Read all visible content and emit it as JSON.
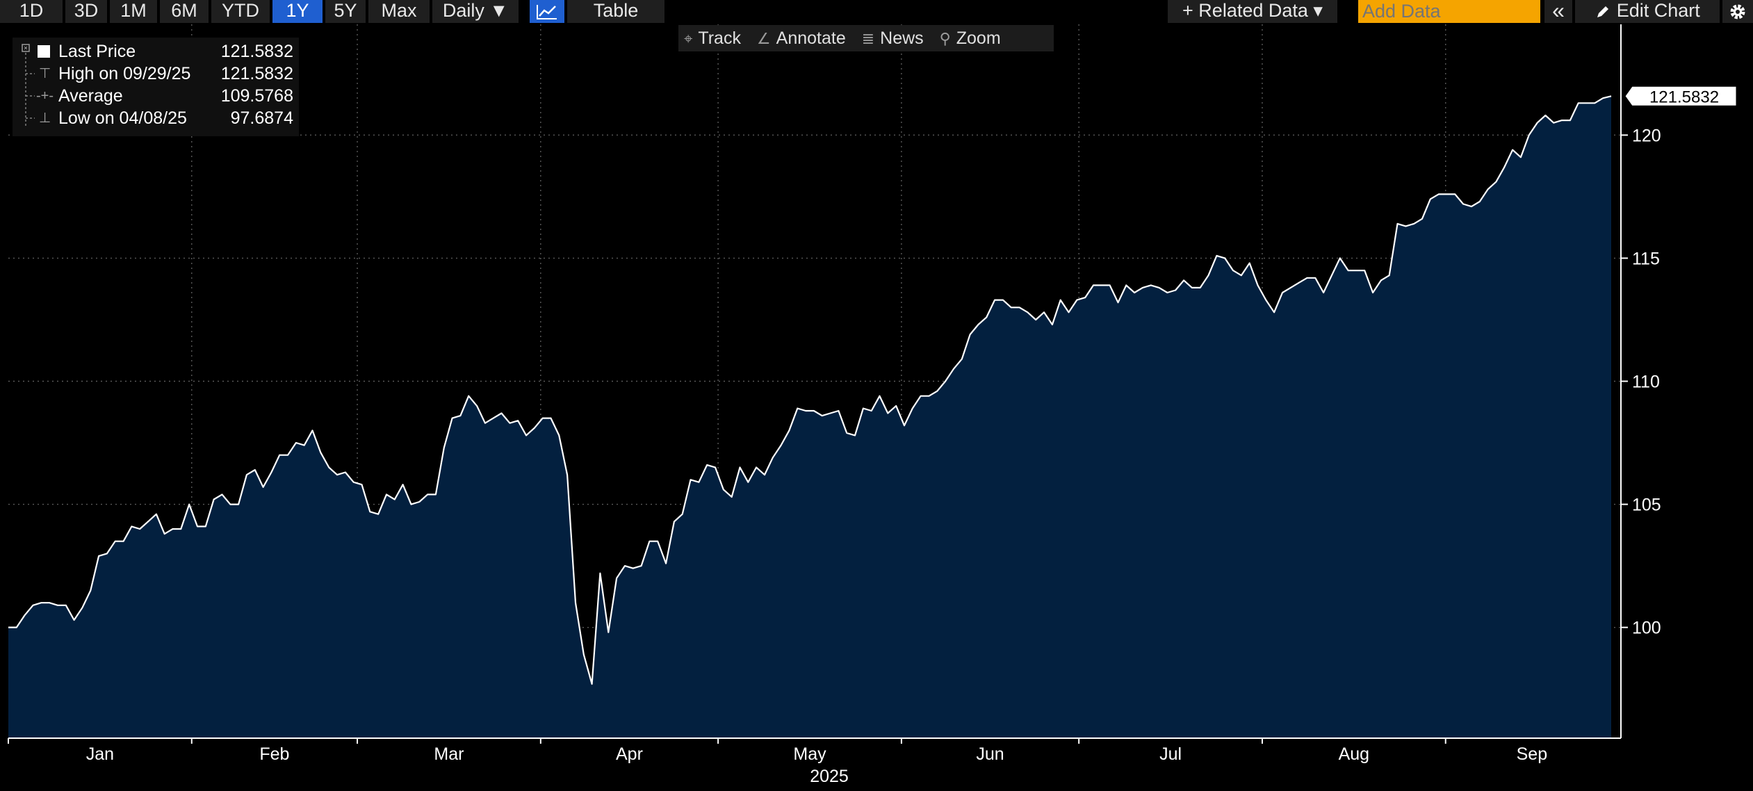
{
  "toolbar": {
    "ranges": [
      "1D",
      "3D",
      "1M",
      "6M",
      "YTD",
      "1Y",
      "5Y",
      "Max"
    ],
    "active_range": "1Y",
    "frequency": "Daily ▼",
    "table_label": "Table",
    "related_data": "+ Related Data ▾",
    "add_data_placeholder": "Add Data",
    "collapse_glyph": "«",
    "edit_chart": "Edit Chart"
  },
  "chart_tools": {
    "track": "Track",
    "annotate": "Annotate",
    "news": "News",
    "zoom": "Zoom"
  },
  "legend": {
    "last_price_label": "Last Price",
    "last_price_value": "121.5832",
    "high_label": "High on 09/29/25",
    "high_value": "121.5832",
    "average_label": "Average",
    "average_value": "109.5768",
    "low_label": "Low on 04/08/25",
    "low_value": "97.6874"
  },
  "colors": {
    "background": "#000000",
    "area_fill": "#03203f",
    "line": "#ffffff",
    "active_tab": "#1f5fd0",
    "add_data": "#f5a400"
  },
  "chart_data": {
    "type": "area",
    "series": [
      {
        "values": [
          100.0,
          100.0,
          100.5,
          100.9,
          101.0,
          101.0,
          100.9,
          100.9,
          100.3,
          100.8,
          101.5,
          102.9,
          103.0,
          103.5,
          103.5,
          104.1,
          104.0,
          104.3,
          104.6,
          103.8,
          104.0,
          104.0,
          105.0,
          104.1,
          104.1,
          105.2,
          105.4,
          105.0,
          105.0,
          106.2,
          106.4,
          105.7,
          106.3,
          107.0,
          107.0,
          107.5,
          107.4,
          108.0,
          107.1,
          106.5,
          106.2,
          106.3,
          105.9,
          105.8,
          104.7,
          104.6,
          105.4,
          105.2,
          105.8,
          105.0,
          105.1,
          105.4,
          105.4,
          107.3,
          108.5,
          108.6,
          109.4,
          109.0,
          108.3,
          108.5,
          108.7,
          108.3,
          108.4,
          107.8,
          108.1,
          108.5,
          108.5,
          107.8,
          106.2,
          101.0,
          98.9,
          97.7,
          102.2,
          99.8,
          102.0,
          102.5,
          102.4,
          102.5,
          103.5,
          103.5,
          102.6,
          104.3,
          104.6,
          106.0,
          105.9,
          106.6,
          106.5,
          105.6,
          105.3,
          106.5,
          105.9,
          106.5,
          106.2,
          106.9,
          107.4,
          108.0,
          108.9,
          108.8,
          108.8,
          108.6,
          108.7,
          108.8,
          107.9,
          107.8,
          108.9,
          108.8,
          109.4,
          108.7,
          109.0,
          108.2,
          108.9,
          109.4,
          109.4,
          109.6,
          110.0,
          110.5,
          110.9,
          111.9,
          112.3,
          112.6,
          113.3,
          113.3,
          113.0,
          113.0,
          112.8,
          112.5,
          112.8,
          112.3,
          113.3,
          112.8,
          113.3,
          113.4,
          113.9,
          113.9,
          113.9,
          113.2,
          113.9,
          113.6,
          113.8,
          113.9,
          113.8,
          113.6,
          113.7,
          114.1,
          113.8,
          113.8,
          114.3,
          115.1,
          115.0,
          114.5,
          114.3,
          114.8,
          113.9,
          113.3,
          112.8,
          113.6,
          113.8,
          114.0,
          114.2,
          114.2,
          113.6,
          114.3,
          115.0,
          114.5,
          114.5,
          114.5,
          113.6,
          114.1,
          114.3,
          116.4,
          116.3,
          116.4,
          116.6,
          117.4,
          117.6,
          117.6,
          117.6,
          117.2,
          117.1,
          117.3,
          117.8,
          118.1,
          118.7,
          119.4,
          119.1,
          120.0,
          120.5,
          120.8,
          120.5,
          120.6,
          120.6,
          121.3,
          121.3,
          121.3,
          121.5,
          121.5832
        ]
      }
    ],
    "x_start": "2025-01-01",
    "x_end": "2025-09-29",
    "ylim": [
      95.5,
      124.5
    ],
    "yticks": [
      100,
      105,
      110,
      115,
      120
    ],
    "x_labels": [
      "Jan",
      "Feb",
      "Mar",
      "Apr",
      "May",
      "Jun",
      "Jul",
      "Aug",
      "Sep"
    ],
    "year_label": "2025",
    "last_value_label": "121.5832",
    "grid": true,
    "y_axis_side": "right"
  }
}
